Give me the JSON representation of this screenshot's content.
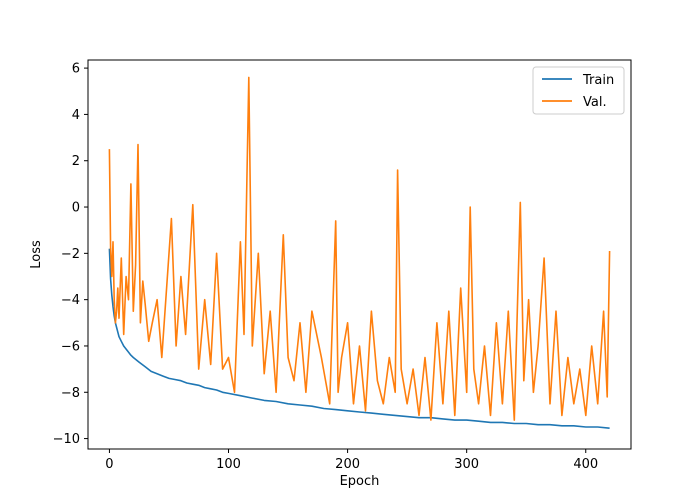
{
  "chart_data": {
    "type": "line",
    "title": "",
    "xlabel": "Epoch",
    "ylabel": "Loss",
    "xlim": [
      -18,
      438
    ],
    "ylim": [
      -10.45,
      6.35
    ],
    "xticks": [
      0,
      100,
      200,
      300,
      400
    ],
    "yticks": [
      -10,
      -8,
      -6,
      -4,
      -2,
      0,
      2,
      4,
      6
    ],
    "grid": false,
    "legend": "top-right",
    "series": [
      {
        "name": "Train",
        "color": "#1f77b4",
        "x": [
          0,
          1,
          2,
          3,
          4,
          5,
          6,
          8,
          10,
          12,
          15,
          18,
          20,
          25,
          30,
          35,
          40,
          45,
          50,
          55,
          60,
          65,
          70,
          75,
          80,
          85,
          90,
          95,
          100,
          110,
          120,
          130,
          140,
          150,
          160,
          170,
          180,
          190,
          200,
          210,
          220,
          230,
          240,
          250,
          260,
          270,
          280,
          290,
          300,
          310,
          320,
          330,
          340,
          350,
          360,
          370,
          380,
          390,
          400,
          410,
          420
        ],
        "y": [
          -1.8,
          -3.1,
          -3.8,
          -4.3,
          -4.7,
          -5.0,
          -5.2,
          -5.6,
          -5.8,
          -6.0,
          -6.2,
          -6.4,
          -6.5,
          -6.7,
          -6.9,
          -7.1,
          -7.2,
          -7.3,
          -7.4,
          -7.45,
          -7.5,
          -7.6,
          -7.65,
          -7.7,
          -7.8,
          -7.85,
          -7.9,
          -8.0,
          -8.05,
          -8.15,
          -8.25,
          -8.35,
          -8.4,
          -8.5,
          -8.55,
          -8.6,
          -8.7,
          -8.75,
          -8.8,
          -8.85,
          -8.9,
          -8.95,
          -9.0,
          -9.05,
          -9.1,
          -9.1,
          -9.15,
          -9.2,
          -9.2,
          -9.25,
          -9.3,
          -9.3,
          -9.35,
          -9.35,
          -9.4,
          -9.4,
          -9.45,
          -9.45,
          -9.5,
          -9.5,
          -9.55
        ]
      },
      {
        "name": "Val.",
        "color": "#ff7f0e",
        "x": [
          0,
          1,
          2,
          3,
          4,
          5,
          6,
          7,
          8,
          10,
          12,
          14,
          16,
          18,
          20,
          22,
          24,
          26,
          28,
          30,
          33,
          36,
          40,
          44,
          48,
          52,
          56,
          60,
          64,
          70,
          75,
          80,
          85,
          90,
          95,
          100,
          105,
          110,
          113,
          117,
          120,
          125,
          130,
          135,
          140,
          146,
          150,
          155,
          160,
          165,
          170,
          178,
          185,
          190,
          192,
          195,
          200,
          205,
          210,
          215,
          220,
          225,
          230,
          235,
          240,
          242,
          245,
          250,
          255,
          260,
          265,
          270,
          275,
          280,
          285,
          290,
          295,
          300,
          303,
          306,
          310,
          315,
          320,
          325,
          330,
          335,
          340,
          345,
          348,
          352,
          356,
          360,
          365,
          370,
          375,
          380,
          385,
          390,
          395,
          400,
          405,
          410,
          415,
          418,
          420
        ],
        "y": [
          2.5,
          -1.8,
          -3.0,
          -1.5,
          -4.0,
          -5.0,
          -4.5,
          -3.5,
          -4.8,
          -2.2,
          -5.5,
          -3.0,
          -4.0,
          1.0,
          -4.5,
          -2.5,
          2.7,
          -5.0,
          -3.2,
          -4.2,
          -5.8,
          -5.0,
          -4.0,
          -6.5,
          -3.5,
          -0.5,
          -6.0,
          -3.0,
          -5.5,
          0.1,
          -7.0,
          -4.0,
          -6.8,
          -2.0,
          -7.0,
          -6.5,
          -8.0,
          -1.5,
          -5.5,
          5.6,
          -6.0,
          -2.0,
          -7.2,
          -4.5,
          -8.0,
          -1.2,
          -6.5,
          -7.5,
          -5.0,
          -8.0,
          -4.5,
          -6.5,
          -8.5,
          -0.6,
          -8.0,
          -6.5,
          -5.0,
          -8.5,
          -6.0,
          -8.8,
          -4.5,
          -7.5,
          -8.5,
          -6.5,
          -8.0,
          1.6,
          -7.0,
          -8.5,
          -7.0,
          -9.0,
          -6.5,
          -9.2,
          -5.0,
          -8.5,
          -4.5,
          -9.0,
          -3.5,
          -8.0,
          0.0,
          -7.0,
          -8.5,
          -6.0,
          -9.0,
          -5.0,
          -8.5,
          -4.5,
          -9.2,
          0.2,
          -7.5,
          -4.0,
          -8.0,
          -6.0,
          -2.2,
          -8.5,
          -4.5,
          -9.0,
          -6.5,
          -8.5,
          -7.0,
          -9.0,
          -6.0,
          -8.5,
          -4.5,
          -8.2,
          -1.9
        ]
      }
    ]
  }
}
